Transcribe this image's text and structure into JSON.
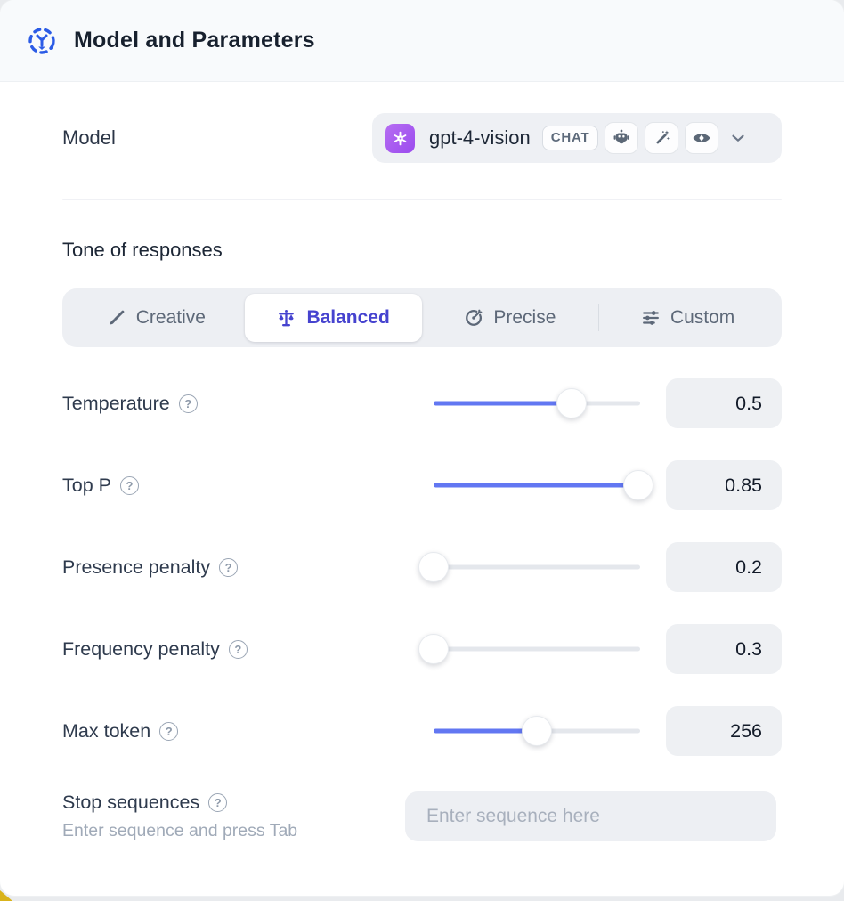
{
  "header": {
    "title": "Model and Parameters"
  },
  "model_row": {
    "label": "Model",
    "selected_model": "gpt-4-vision",
    "type_badge": "CHAT",
    "capability_icons": [
      "plugin-robot-icon",
      "magic-wand-icon",
      "vision-eye-icon"
    ],
    "provider_icon": "openai-logo"
  },
  "tone": {
    "heading": "Tone of responses",
    "options": [
      {
        "label": "Creative",
        "icon": "paintbrush-icon",
        "selected": false
      },
      {
        "label": "Balanced",
        "icon": "scales-icon",
        "selected": true
      },
      {
        "label": "Precise",
        "icon": "target-icon",
        "selected": false
      },
      {
        "label": "Custom",
        "icon": "sliders-icon",
        "selected": false
      }
    ]
  },
  "parameters": [
    {
      "label": "Temperature",
      "value": "0.5",
      "slider_percent": 67
    },
    {
      "label": "Top P",
      "value": "0.85",
      "slider_percent": 99
    },
    {
      "label": "Presence penalty",
      "value": "0.2",
      "slider_percent": 0
    },
    {
      "label": "Frequency penalty",
      "value": "0.3",
      "slider_percent": 0
    },
    {
      "label": "Max token",
      "value": "256",
      "slider_percent": 50
    }
  ],
  "stop_sequences": {
    "label": "Stop sequences",
    "hint": "Enter sequence and press Tab",
    "placeholder": "Enter sequence here"
  },
  "colors": {
    "slider_fill": "#6277f2",
    "selected_tab": "#4643cf",
    "header_icon_blue": "#2b5be6",
    "provider_purple": "#a259ef",
    "icon_gray": "#5b6776",
    "field_bg": "#eef0f4"
  }
}
